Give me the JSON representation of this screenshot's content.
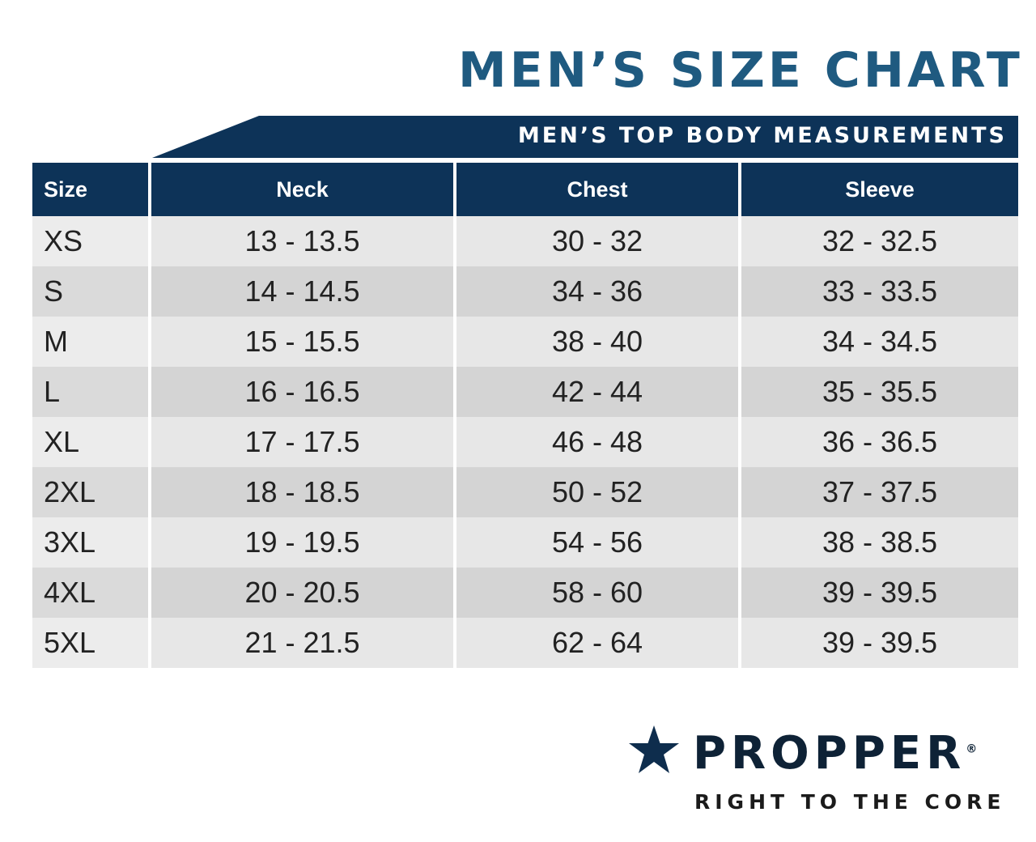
{
  "title": "MEN’S SIZE CHART",
  "banner": "MEN’S TOP BODY MEASUREMENTS",
  "columns": [
    "Size",
    "Neck",
    "Chest",
    "Sleeve"
  ],
  "rows": [
    [
      "XS",
      "13 - 13.5",
      "30 - 32",
      "32 - 32.5"
    ],
    [
      "S",
      "14 - 14.5",
      "34 - 36",
      "33 - 33.5"
    ],
    [
      "M",
      "15 - 15.5",
      "38 - 40",
      "34 - 34.5"
    ],
    [
      "L",
      "16 - 16.5",
      "42 - 44",
      "35 - 35.5"
    ],
    [
      "XL",
      "17 - 17.5",
      "46 - 48",
      "36 - 36.5"
    ],
    [
      "2XL",
      "18 - 18.5",
      "50 - 52",
      "37 - 37.5"
    ],
    [
      "3XL",
      "19 - 19.5",
      "54 - 56",
      "38 - 38.5"
    ],
    [
      "4XL",
      "20 - 20.5",
      "58 - 60",
      "39 - 39.5"
    ],
    [
      "5XL",
      "21 - 21.5",
      "62 - 64",
      "39 - 39.5"
    ]
  ],
  "logo": {
    "name": "PROPPER",
    "registered": "®",
    "tagline": "RIGHT TO THE CORE",
    "icon": "star-icon"
  },
  "colors": {
    "title": "#1f5a80",
    "header": "#0d3358",
    "row_light": "#e7e7e7",
    "row_dark": "#d4d4d4"
  }
}
